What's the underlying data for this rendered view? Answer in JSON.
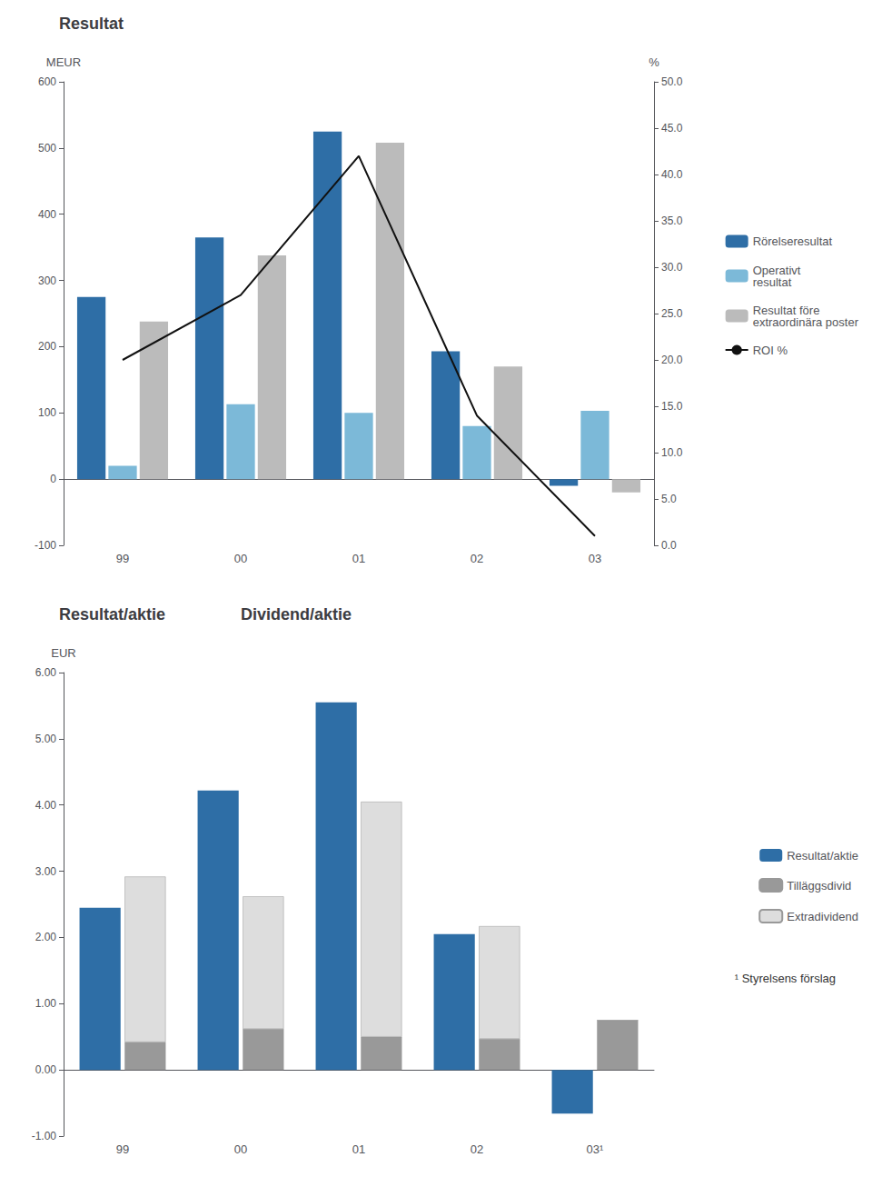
{
  "chart_data": [
    {
      "type": "bar",
      "title": "Resultat",
      "ylabel": "MEUR",
      "y2label": "%",
      "categories": [
        "99",
        "00",
        "01",
        "02",
        "03"
      ],
      "series": [
        {
          "name": "Rörelseresultat",
          "color": "#2E6EA6",
          "values": [
            275,
            365,
            525,
            193,
            -10
          ]
        },
        {
          "name": "Operativt\nresultat",
          "color": "#7CB9D8",
          "values": [
            20,
            113,
            100,
            80,
            103
          ]
        },
        {
          "name": "Resultat före\nextraordinära poster",
          "color": "#BBBBBB",
          "values": [
            238,
            338,
            508,
            170,
            -20
          ]
        },
        {
          "name": "ROI %",
          "type": "line",
          "axis": "y2",
          "color": "#111111",
          "values": [
            20.0,
            27.0,
            42.0,
            14.0,
            1.0
          ]
        }
      ],
      "ylim": [
        -100,
        600
      ],
      "yticks": [
        -100,
        0,
        100,
        200,
        300,
        400,
        500,
        600
      ],
      "y2lim": [
        0,
        50
      ],
      "y2ticks": [
        {
          "value": 0,
          "label": "0.0"
        },
        {
          "value": 5,
          "label": "5.0"
        },
        {
          "value": 10,
          "label": "10.0"
        },
        {
          "value": 15,
          "label": "15.0"
        },
        {
          "value": 20,
          "label": "20.0"
        },
        {
          "value": 25,
          "label": "25.0"
        },
        {
          "value": 30,
          "label": "30.0"
        },
        {
          "value": 35,
          "label": "35.0"
        },
        {
          "value": 40,
          "label": "40.0"
        },
        {
          "value": 45,
          "label": "45.0"
        },
        {
          "value": 50,
          "label": "50.0"
        }
      ],
      "grid": false,
      "legend": "right"
    },
    {
      "type": "bar",
      "title": "Resultat/aktie",
      "subtitle": "Dividend/aktie",
      "ylabel": "EUR",
      "categories": [
        "99",
        "00",
        "01",
        "02",
        "03¹"
      ],
      "series": [
        {
          "name": "Resultat/aktie",
          "color": "#2E6EA6",
          "values": [
            2.45,
            4.22,
            5.55,
            2.05,
            -0.66
          ]
        },
        {
          "name": "Tilläggsdivid",
          "color": "#999999",
          "stacked": true,
          "values": [
            0.42,
            0.62,
            0.5,
            0.47,
            0.75
          ]
        },
        {
          "name": "Extradividend",
          "color": "#DDDDDD",
          "stacked": true,
          "values": [
            2.5,
            2.0,
            3.55,
            1.7,
            0.0
          ]
        }
      ],
      "ylim": [
        -1,
        6
      ],
      "yticks": [
        {
          "value": -1,
          "label": "-1.00"
        },
        {
          "value": 0,
          "label": "0.00"
        },
        {
          "value": 1,
          "label": "1.00"
        },
        {
          "value": 2,
          "label": "2.00"
        },
        {
          "value": 3,
          "label": "3.00"
        },
        {
          "value": 4,
          "label": "4.00"
        },
        {
          "value": 5,
          "label": "5.00"
        },
        {
          "value": 6,
          "label": "6.00"
        }
      ],
      "annotations": [
        "¹ Styrelsens förslag"
      ],
      "grid": false,
      "legend": "right"
    }
  ]
}
